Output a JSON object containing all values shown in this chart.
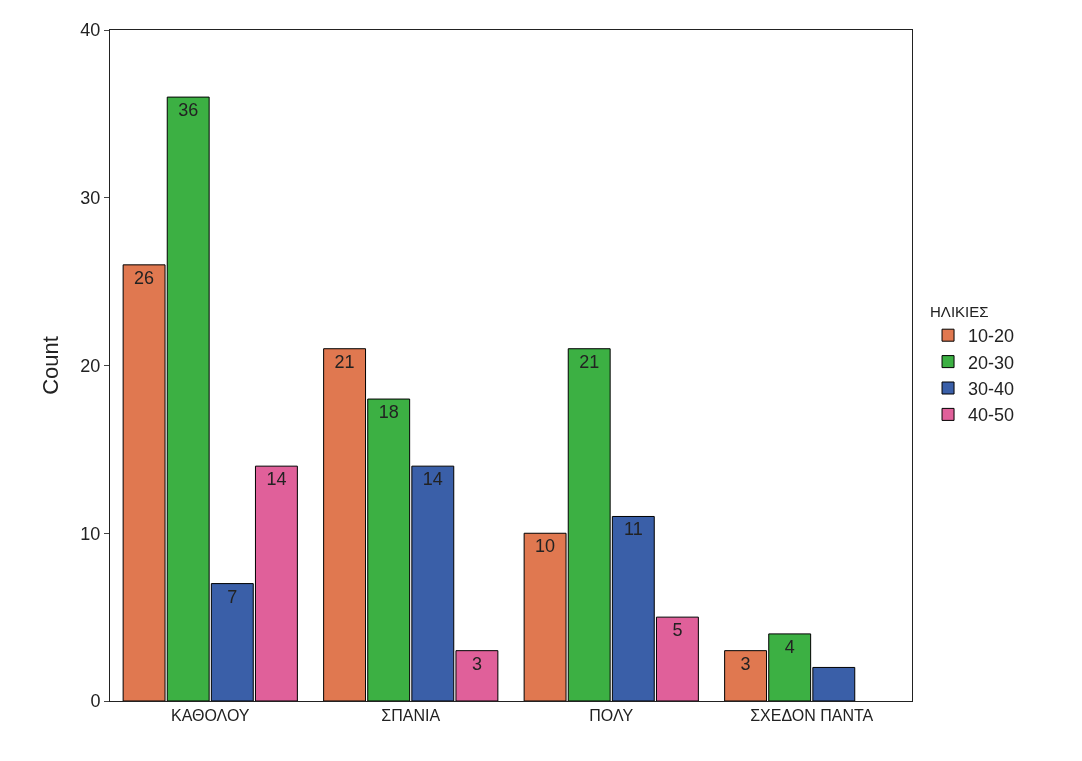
{
  "chart_data": {
    "type": "bar",
    "ylabel": "Count",
    "legend_title": "ΗΛΙΚΙΕΣ",
    "categories": [
      "ΚΑΘΟΛΟΥ",
      "ΣΠΑΝΙΑ",
      "ΠΟΛΥ",
      "ΣΧΕΔΟΝ ΠΑΝΤΑ"
    ],
    "series": [
      {
        "name": "10-20",
        "color": "#e07850",
        "values": [
          26,
          21,
          10,
          3
        ],
        "value_labels": [
          "26",
          "21",
          "10",
          "3"
        ]
      },
      {
        "name": "20-30",
        "color": "#3cb043",
        "values": [
          36,
          18,
          21,
          4
        ],
        "value_labels": [
          "36",
          "18",
          "21",
          "4"
        ]
      },
      {
        "name": "30-40",
        "color": "#3a5fa8",
        "values": [
          7,
          14,
          11,
          2
        ],
        "value_labels": [
          "7",
          "14",
          "11",
          null
        ]
      },
      {
        "name": "40-50",
        "color": "#e0609a",
        "values": [
          14,
          3,
          5,
          null
        ],
        "value_labels": [
          "14",
          "3",
          "5",
          null
        ]
      }
    ],
    "ylim": [
      0,
      40
    ],
    "yticks": [
      0,
      10,
      20,
      30,
      40
    ],
    "legend": "right"
  }
}
